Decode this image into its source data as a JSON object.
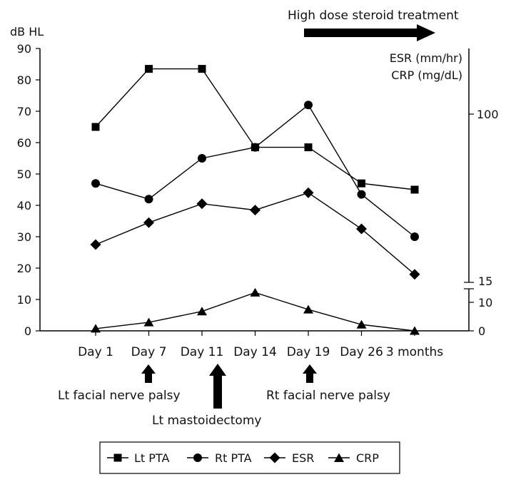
{
  "chart_data": {
    "type": "line",
    "categories": [
      "Day 1",
      "Day 7",
      "Day 11",
      "Day 14",
      "Day 19",
      "Day 26",
      "3 months"
    ],
    "y_left": {
      "unit_label": "dB HL",
      "ticks": [
        "0",
        "10",
        "20",
        "30",
        "40",
        "50",
        "60",
        "70",
        "80",
        "90"
      ],
      "ylim": [
        0,
        90
      ]
    },
    "y_right": {
      "title_lines": [
        "ESR (mm/hr)",
        "CRP (mg/dL)"
      ],
      "upper_ticks": [
        "100",
        "15"
      ],
      "lower_ticks": [
        "10",
        "0"
      ]
    },
    "series": [
      {
        "name": "Lt PTA",
        "marker": "square",
        "values": [
          65,
          83.5,
          83.5,
          58.5,
          58.5,
          47,
          45
        ]
      },
      {
        "name": "Rt PTA",
        "marker": "circle",
        "values": [
          47,
          42,
          55,
          58.5,
          72,
          43.5,
          30
        ]
      },
      {
        "name": "ESR",
        "marker": "diamond",
        "values": [
          27.5,
          34.5,
          40.5,
          38.5,
          44,
          32.5,
          18
        ]
      },
      {
        "name": "CRP",
        "marker": "triangle",
        "values": [
          0.7,
          2.7,
          6.2,
          12.2,
          6.8,
          2.0,
          0
        ]
      }
    ],
    "annotations": {
      "treatment": "High dose steroid treatment",
      "events": [
        {
          "label": "Lt facial nerve palsy",
          "category": "Day 7"
        },
        {
          "label": "Lt mastoidectomy",
          "category": "Day 11"
        },
        {
          "label": "Rt facial nerve palsy",
          "category": "Day 19"
        }
      ]
    },
    "legend_position": "bottom",
    "grid": false
  }
}
